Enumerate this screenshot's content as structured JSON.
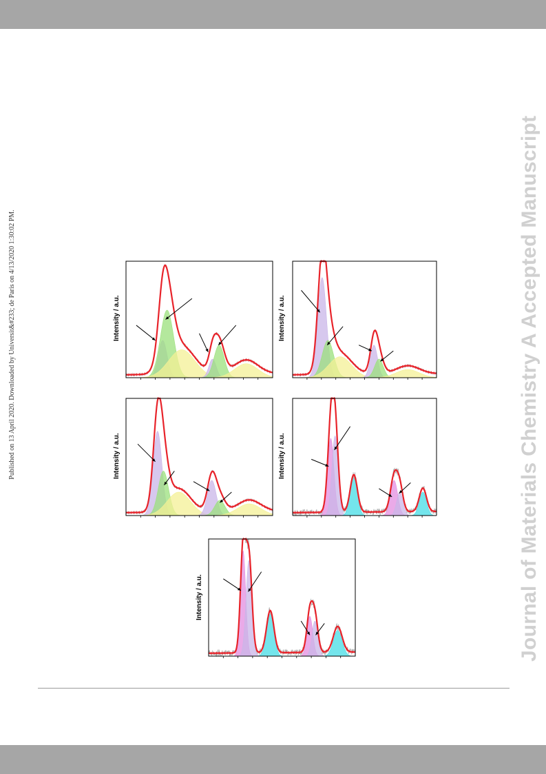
{
  "header_band": {
    "color": "#a6a6a6"
  },
  "footer_band": {
    "color": "#a6a6a6"
  },
  "side_note": "Published on 13 April 2020. Downloaded by Universit&#233; de Paris on 4/13/2020 1:30:02 PM.",
  "watermark": "Journal of Materials Chemistry A Accepted Manuscript",
  "colors": {
    "fit_line": "#e8232a",
    "data_points": "#b5b5b5",
    "purple_component": "#c9b5e8",
    "green_component": "#9be07c",
    "yellow_component": "#f4f096",
    "magenta_component": "#e38ee0",
    "cyan_component": "#46dce6"
  },
  "chart_data": [
    {
      "type": "area",
      "ylabel": "Intensity / a.u.",
      "xlabel": "",
      "peaks": [
        {
          "center": 0.25,
          "height": 0.32,
          "width": 0.03,
          "color": "purple"
        },
        {
          "center": 0.28,
          "height": 0.58,
          "width": 0.045,
          "color": "green"
        },
        {
          "center": 0.38,
          "height": 0.24,
          "width": 0.09,
          "color": "yellow"
        },
        {
          "center": 0.59,
          "height": 0.16,
          "width": 0.025,
          "color": "purple"
        },
        {
          "center": 0.635,
          "height": 0.28,
          "width": 0.035,
          "color": "green"
        },
        {
          "center": 0.82,
          "height": 0.12,
          "width": 0.08,
          "color": "yellow"
        }
      ]
    },
    {
      "type": "area",
      "ylabel": "Intensity / a.u.",
      "xlabel": "",
      "peaks": [
        {
          "center": 0.205,
          "height": 0.86,
          "width": 0.03,
          "color": "purple"
        },
        {
          "center": 0.245,
          "height": 0.32,
          "width": 0.04,
          "color": "green"
        },
        {
          "center": 0.33,
          "height": 0.18,
          "width": 0.08,
          "color": "yellow"
        },
        {
          "center": 0.565,
          "height": 0.28,
          "width": 0.025,
          "color": "purple"
        },
        {
          "center": 0.6,
          "height": 0.16,
          "width": 0.03,
          "color": "green"
        },
        {
          "center": 0.8,
          "height": 0.07,
          "width": 0.08,
          "color": "yellow"
        }
      ]
    },
    {
      "type": "area",
      "ylabel": "Intensity / a.u.",
      "xlabel": "",
      "peaks": [
        {
          "center": 0.215,
          "height": 0.72,
          "width": 0.03,
          "color": "purple"
        },
        {
          "center": 0.255,
          "height": 0.38,
          "width": 0.035,
          "color": "green"
        },
        {
          "center": 0.36,
          "height": 0.2,
          "width": 0.08,
          "color": "yellow"
        },
        {
          "center": 0.585,
          "height": 0.3,
          "width": 0.03,
          "color": "purple"
        },
        {
          "center": 0.64,
          "height": 0.13,
          "width": 0.035,
          "color": "green"
        },
        {
          "center": 0.84,
          "height": 0.1,
          "width": 0.08,
          "color": "yellow"
        }
      ]
    },
    {
      "type": "area",
      "ylabel": "Intensity / a.u.",
      "xlabel": "",
      "peaks": [
        {
          "center": 0.265,
          "height": 0.66,
          "width": 0.022,
          "color": "magenta"
        },
        {
          "center": 0.295,
          "height": 0.68,
          "width": 0.022,
          "color": "purple"
        },
        {
          "center": 0.425,
          "height": 0.32,
          "width": 0.025,
          "color": "cyan"
        },
        {
          "center": 0.705,
          "height": 0.3,
          "width": 0.025,
          "color": "magenta"
        },
        {
          "center": 0.745,
          "height": 0.2,
          "width": 0.022,
          "color": "purple"
        },
        {
          "center": 0.905,
          "height": 0.2,
          "width": 0.025,
          "color": "cyan"
        }
      ]
    },
    {
      "type": "area",
      "ylabel": "Intensity / a.u.",
      "xlabel": "",
      "peaks": [
        {
          "center": 0.235,
          "height": 0.9,
          "width": 0.018,
          "color": "magenta"
        },
        {
          "center": 0.275,
          "height": 0.82,
          "width": 0.02,
          "color": "purple"
        },
        {
          "center": 0.42,
          "height": 0.36,
          "width": 0.025,
          "color": "cyan"
        },
        {
          "center": 0.69,
          "height": 0.34,
          "width": 0.02,
          "color": "magenta"
        },
        {
          "center": 0.725,
          "height": 0.3,
          "width": 0.02,
          "color": "purple"
        },
        {
          "center": 0.88,
          "height": 0.22,
          "width": 0.03,
          "color": "cyan"
        }
      ]
    }
  ]
}
